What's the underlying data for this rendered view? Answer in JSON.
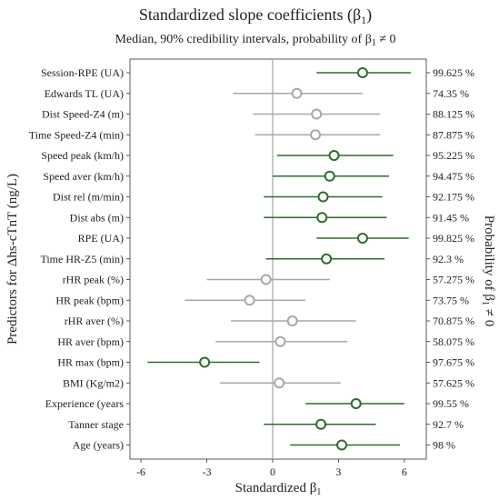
{
  "chart_data": {
    "type": "scatter",
    "title_main": "Standardized slope coefficients (β",
    "title_sub": "1",
    "title_close": ")",
    "subtitle_main": "Median, 90% credibility intervals, probability of β",
    "subtitle_sub": "1",
    "subtitle_rest": " ≠ 0",
    "xlabel_main": "Standardized β",
    "xlabel_sub": "1",
    "ylabel_left_main": "Predictors for Δhs-cTnT (ng/L)",
    "ylabel_right_main": "Probability of β",
    "ylabel_right_sub": "1",
    "ylabel_right_rest": " ≠ 0",
    "xlim": [
      -6.5,
      7
    ],
    "xticks": [
      -6,
      -3,
      0,
      3,
      6
    ],
    "xtick_labels": [
      "-6",
      "-3",
      "0",
      "3",
      "6"
    ],
    "reference_line": 0,
    "colors": {
      "credible": "#2e6b2e",
      "non_credible": "#a8a8a8",
      "reference": "#bbbbbb"
    },
    "rows": [
      {
        "label": "Session-RPE (UA)",
        "median": 4.1,
        "low": 2.0,
        "high": 6.3,
        "prob": "99.625 %",
        "credible": true
      },
      {
        "label": "Edwards TL (UA)",
        "median": 1.1,
        "low": -1.8,
        "high": 4.1,
        "prob": "74.35 %",
        "credible": false
      },
      {
        "label": "Dist Speed-Z4 (m)",
        "median": 2.0,
        "low": -0.9,
        "high": 4.9,
        "prob": "88.125 %",
        "credible": false
      },
      {
        "label": "Time Speed-Z4 (min)",
        "median": 1.95,
        "low": -0.8,
        "high": 4.9,
        "prob": "87.875 %",
        "credible": false
      },
      {
        "label": "Speed peak (km/h)",
        "median": 2.8,
        "low": 0.2,
        "high": 5.5,
        "prob": "95.225 %",
        "credible": true
      },
      {
        "label": "Speed aver (km/h)",
        "median": 2.6,
        "low": 0.0,
        "high": 5.3,
        "prob": "94.475 %",
        "credible": true
      },
      {
        "label": "Dist rel (m/min)",
        "median": 2.3,
        "low": -0.4,
        "high": 5.0,
        "prob": "92.175 %",
        "credible": true
      },
      {
        "label": "Dist abs (m)",
        "median": 2.25,
        "low": -0.4,
        "high": 5.2,
        "prob": "91.45 %",
        "credible": true
      },
      {
        "label": "RPE (UA)",
        "median": 4.1,
        "low": 2.0,
        "high": 6.2,
        "prob": "99.825 %",
        "credible": true
      },
      {
        "label": "Time HR-Z5 (min)",
        "median": 2.45,
        "low": -0.3,
        "high": 5.1,
        "prob": "92.3 %",
        "credible": true
      },
      {
        "label": "rHR peak (%)",
        "median": -0.3,
        "low": -3.0,
        "high": 2.6,
        "prob": "57.275 %",
        "credible": false
      },
      {
        "label": "HR peak (bpm)",
        "median": -1.05,
        "low": -4.0,
        "high": 1.5,
        "prob": "73.75 %",
        "credible": false
      },
      {
        "label": "rHR aver (%)",
        "median": 0.9,
        "low": -1.9,
        "high": 3.8,
        "prob": "70.875 %",
        "credible": false
      },
      {
        "label": "HR aver (bpm)",
        "median": 0.35,
        "low": -2.6,
        "high": 3.4,
        "prob": "58.075 %",
        "credible": false
      },
      {
        "label": "HR max (bpm)",
        "median": -3.1,
        "low": -5.7,
        "high": -0.6,
        "prob": "97.675 %",
        "credible": true
      },
      {
        "label": "BMI (Kg/m2)",
        "median": 0.3,
        "low": -2.4,
        "high": 3.1,
        "prob": "57.625 %",
        "credible": false
      },
      {
        "label": "Experience (years",
        "median": 3.8,
        "low": 1.5,
        "high": 6.0,
        "prob": "99.55 %",
        "credible": true
      },
      {
        "label": "Tanner stage",
        "median": 2.2,
        "low": -0.4,
        "high": 4.7,
        "prob": "92.7 %",
        "credible": true
      },
      {
        "label": "Age (years)",
        "median": 3.15,
        "low": 0.8,
        "high": 5.8,
        "prob": "98 %",
        "credible": true
      }
    ]
  }
}
